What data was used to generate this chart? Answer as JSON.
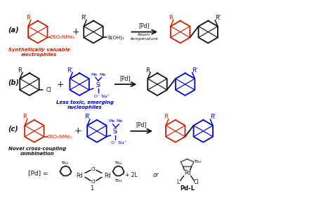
{
  "bg_color": "#ffffff",
  "red_color": "#cc2200",
  "blue_color": "#0000cc",
  "black_color": "#111111",
  "gray_color": "#555555",
  "label_a": "(a)",
  "label_b": "(b)",
  "label_c": "(c)",
  "text_synth": "Synthetically valuable\nelectrophiles",
  "text_nucleophiles": "Less toxic, emerging\nnucleophiles",
  "text_novel": "Novel cross-coupling\ncombination",
  "figsize": [
    4.74,
    2.85
  ],
  "dpi": 100
}
